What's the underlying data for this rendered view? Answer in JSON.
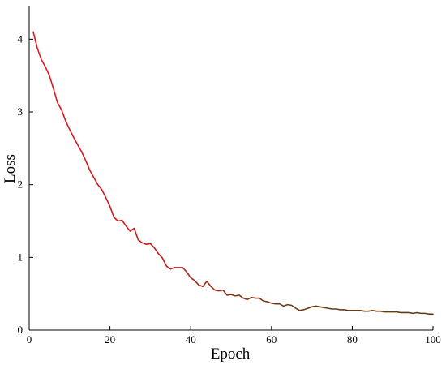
{
  "chart_data": {
    "type": "line",
    "xlabel": "Epoch",
    "ylabel": "Loss",
    "xlim": [
      0,
      100
    ],
    "ylim": [
      0,
      4.45
    ],
    "xticks": [
      0,
      20,
      40,
      60,
      80,
      100
    ],
    "yticks": [
      0,
      1,
      2,
      3,
      4
    ],
    "grid": false,
    "legend": "none",
    "colors": {
      "line_start": "#e8141d",
      "line_end": "#5a3a16",
      "axis": "#000000"
    },
    "series": [
      {
        "values": [
          [
            1,
            4.1
          ],
          [
            2,
            3.88
          ],
          [
            3,
            3.72
          ],
          [
            4,
            3.62
          ],
          [
            5,
            3.5
          ],
          [
            6,
            3.32
          ],
          [
            7,
            3.13
          ],
          [
            8,
            3.03
          ],
          [
            9,
            2.88
          ],
          [
            10,
            2.76
          ],
          [
            11,
            2.65
          ],
          [
            12,
            2.55
          ],
          [
            13,
            2.45
          ],
          [
            14,
            2.33
          ],
          [
            15,
            2.2
          ],
          [
            16,
            2.1
          ],
          [
            17,
            2.0
          ],
          [
            18,
            1.93
          ],
          [
            19,
            1.82
          ],
          [
            20,
            1.7
          ],
          [
            21,
            1.55
          ],
          [
            22,
            1.5
          ],
          [
            23,
            1.51
          ],
          [
            24,
            1.43
          ],
          [
            25,
            1.36
          ],
          [
            26,
            1.4
          ],
          [
            27,
            1.24
          ],
          [
            28,
            1.2
          ],
          [
            29,
            1.18
          ],
          [
            30,
            1.19
          ],
          [
            31,
            1.13
          ],
          [
            32,
            1.05
          ],
          [
            33,
            0.99
          ],
          [
            34,
            0.88
          ],
          [
            35,
            0.84
          ],
          [
            36,
            0.86
          ],
          [
            37,
            0.86
          ],
          [
            38,
            0.86
          ],
          [
            39,
            0.8
          ],
          [
            40,
            0.72
          ],
          [
            41,
            0.68
          ],
          [
            42,
            0.62
          ],
          [
            43,
            0.6
          ],
          [
            44,
            0.67
          ],
          [
            45,
            0.6
          ],
          [
            46,
            0.55
          ],
          [
            47,
            0.54
          ],
          [
            48,
            0.55
          ],
          [
            49,
            0.48
          ],
          [
            50,
            0.49
          ],
          [
            51,
            0.47
          ],
          [
            52,
            0.48
          ],
          [
            53,
            0.44
          ],
          [
            54,
            0.42
          ],
          [
            55,
            0.45
          ],
          [
            56,
            0.44
          ],
          [
            57,
            0.44
          ],
          [
            58,
            0.4
          ],
          [
            59,
            0.39
          ],
          [
            60,
            0.37
          ],
          [
            61,
            0.36
          ],
          [
            62,
            0.36
          ],
          [
            63,
            0.33
          ],
          [
            64,
            0.35
          ],
          [
            65,
            0.34
          ],
          [
            66,
            0.3
          ],
          [
            67,
            0.27
          ],
          [
            68,
            0.28
          ],
          [
            69,
            0.3
          ],
          [
            70,
            0.32
          ],
          [
            71,
            0.33
          ],
          [
            72,
            0.32
          ],
          [
            73,
            0.31
          ],
          [
            74,
            0.3
          ],
          [
            75,
            0.29
          ],
          [
            76,
            0.29
          ],
          [
            77,
            0.28
          ],
          [
            78,
            0.28
          ],
          [
            79,
            0.27
          ],
          [
            80,
            0.27
          ],
          [
            81,
            0.27
          ],
          [
            82,
            0.27
          ],
          [
            83,
            0.26
          ],
          [
            84,
            0.26
          ],
          [
            85,
            0.27
          ],
          [
            86,
            0.26
          ],
          [
            87,
            0.26
          ],
          [
            88,
            0.25
          ],
          [
            89,
            0.25
          ],
          [
            90,
            0.25
          ],
          [
            91,
            0.25
          ],
          [
            92,
            0.24
          ],
          [
            93,
            0.24
          ],
          [
            94,
            0.24
          ],
          [
            95,
            0.23
          ],
          [
            96,
            0.24
          ],
          [
            97,
            0.23
          ],
          [
            98,
            0.23
          ],
          [
            99,
            0.22
          ],
          [
            100,
            0.22
          ]
        ]
      }
    ]
  }
}
